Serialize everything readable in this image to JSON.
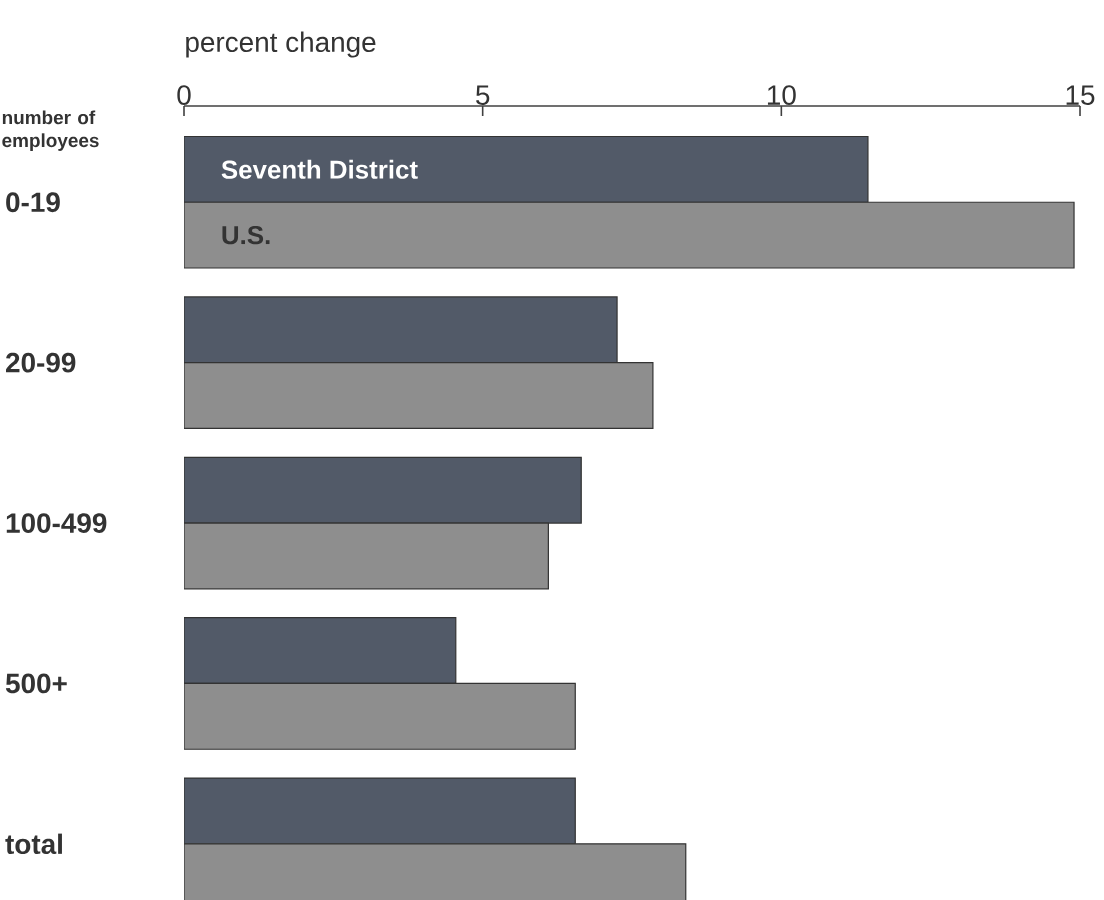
{
  "chart_data": {
    "type": "bar",
    "orientation": "horizontal",
    "xlabel": "percent change",
    "ylabel": "number of employees",
    "categories": [
      "0-19",
      "20-99",
      "100-499",
      "500+",
      "total"
    ],
    "series": [
      {
        "name": "Seventh District",
        "color": "#525a68",
        "values": [
          11.45,
          7.25,
          6.65,
          4.55,
          6.55
        ]
      },
      {
        "name": "U.S.",
        "color": "#8e8e8e",
        "values": [
          14.9,
          7.85,
          6.1,
          6.55,
          8.4
        ]
      }
    ],
    "xlim": [
      0,
      15
    ],
    "xticks": [
      0,
      5,
      10,
      15
    ]
  }
}
